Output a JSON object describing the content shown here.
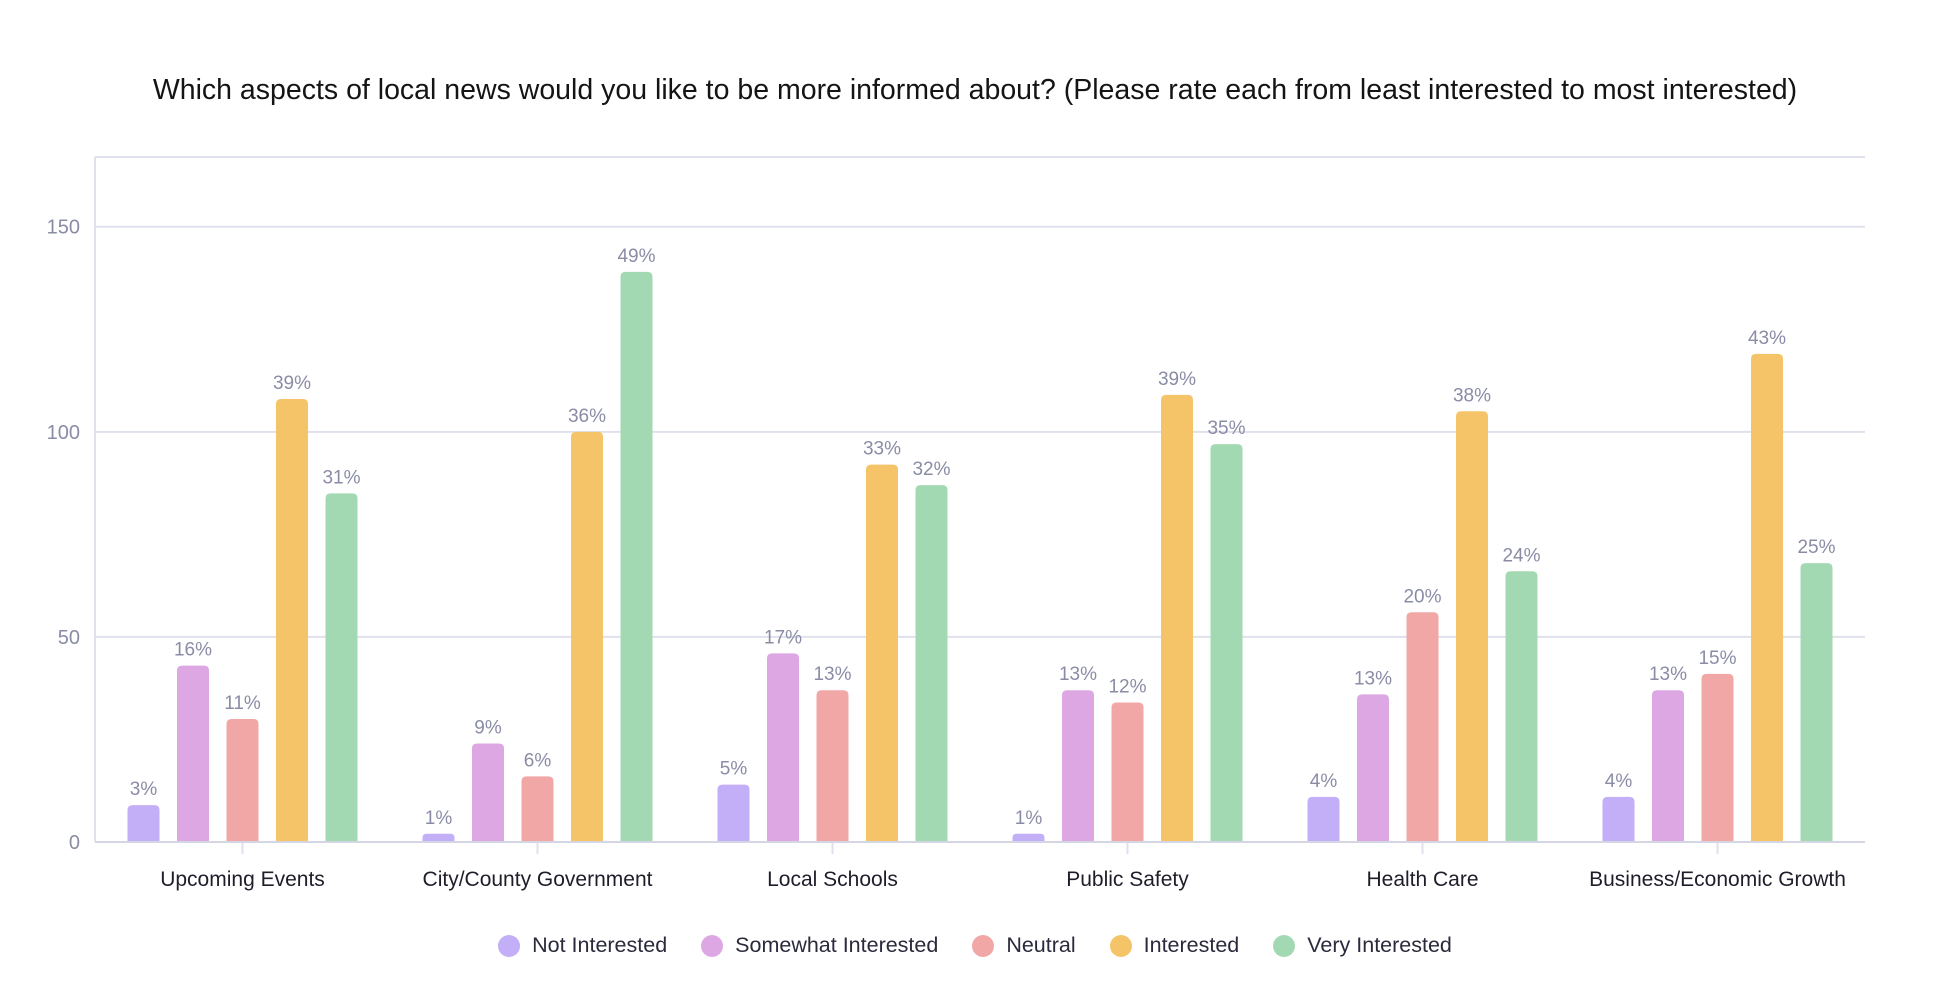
{
  "chart_data": {
    "type": "bar",
    "title": "Which aspects of local news would you like to be more informed about? (Please rate each from least interested to most interested)",
    "xlabel": "",
    "ylabel": "",
    "ylim": [
      0,
      167
    ],
    "yticks": [
      "0",
      "50",
      "100",
      "150"
    ],
    "ytick_values": [
      0,
      50,
      100,
      150
    ],
    "grid": true,
    "legend_position": "bottom",
    "categories": [
      "Upcoming Events",
      "City/County Government",
      "Local Schools",
      "Public Safety",
      "Health Care",
      "Business/Economic Growth"
    ],
    "series": [
      {
        "name": "Not Interested",
        "color": "#c3aef8",
        "values": [
          9,
          2,
          14,
          2,
          11,
          11
        ],
        "labels": [
          "3%",
          "1%",
          "5%",
          "1%",
          "4%",
          "4%"
        ]
      },
      {
        "name": "Somewhat Interested",
        "color": "#dca7e2",
        "values": [
          43,
          24,
          46,
          37,
          36,
          37
        ],
        "labels": [
          "16%",
          "9%",
          "17%",
          "13%",
          "13%",
          "13%"
        ]
      },
      {
        "name": "Neutral",
        "color": "#f0a7a6",
        "values": [
          30,
          16,
          37,
          34,
          56,
          41
        ],
        "labels": [
          "11%",
          "6%",
          "13%",
          "12%",
          "20%",
          "15%"
        ]
      },
      {
        "name": "Interested",
        "color": "#f5c469",
        "values": [
          108,
          100,
          92,
          109,
          105,
          119
        ],
        "labels": [
          "39%",
          "36%",
          "33%",
          "39%",
          "38%",
          "43%"
        ]
      },
      {
        "name": "Very Interested",
        "color": "#a3d9b2",
        "values": [
          85,
          139,
          87,
          97,
          66,
          68
        ],
        "labels": [
          "31%",
          "49%",
          "32%",
          "35%",
          "24%",
          "25%"
        ]
      }
    ]
  }
}
